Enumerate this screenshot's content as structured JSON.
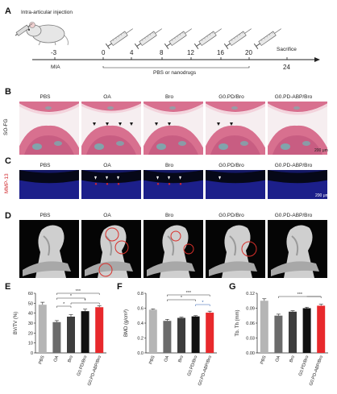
{
  "panels": {
    "A": "A",
    "B": "B",
    "C": "C",
    "D": "D",
    "E": "E",
    "F": "F",
    "G": "G"
  },
  "timeline": {
    "injection_label": "Intra-articular injection",
    "mia_day": "-3",
    "mia_label": "MIA",
    "days": [
      "0",
      "4",
      "8",
      "12",
      "16",
      "20"
    ],
    "sacrifice_day": "24",
    "sacrifice_label": "Sacrifice",
    "treatment_label": "PBS or nanodrugs"
  },
  "groups": [
    "PBS",
    "OA",
    "Bro",
    "G0.PD/Bro",
    "G0.PD-ABP/Bro"
  ],
  "row_labels": {
    "sofg": "SO-FG",
    "mmp": "MMP-13"
  },
  "scale_bars": {
    "sofg": "200 μm",
    "mmp": "200 μm"
  },
  "colors": {
    "sofg_pink": "#d8708f",
    "sofg_teal": "#6fb7b6",
    "dapi_blue": "#1c1f8a",
    "mmp_red": "#e0262a",
    "ct_gray": "#cfcfcf",
    "bar_pbs": "#b5b5b5",
    "bar_oa": "#6b6b6b",
    "bar_bro": "#3d3d3d",
    "bar_g0": "#111111",
    "bar_g0abp": "#e8292c",
    "sig_gray": "#333333",
    "sig_blue": "#2d5fae"
  },
  "chart_data": [
    {
      "type": "bar",
      "panel": "E",
      "categories": [
        "PBS",
        "OA",
        "Bro",
        "G0.PD/Bro",
        "G0.PD-ABP/Bro"
      ],
      "values": [
        48.5,
        31,
        36.5,
        42,
        46
      ],
      "errors": [
        2.5,
        1.5,
        2,
        2,
        1.5
      ],
      "ylabel": "BV/TV (%)",
      "ylim": [
        0,
        60
      ],
      "yticks": [
        "0",
        "10",
        "20",
        "30",
        "40",
        "50",
        "60"
      ],
      "significance": [
        "***",
        "*",
        "*",
        "*"
      ]
    },
    {
      "type": "bar",
      "panel": "F",
      "categories": [
        "PBS",
        "OA",
        "Bro",
        "G0.PD/Bro",
        "G0.PD-ABP/Bro"
      ],
      "values": [
        0.58,
        0.43,
        0.47,
        0.49,
        0.54
      ],
      "errors": [
        0.01,
        0.02,
        0.01,
        0.01,
        0.02
      ],
      "ylabel": "BMD (g/cm³)",
      "ylim": [
        0.0,
        0.8
      ],
      "yticks": [
        "0.0",
        "0.2",
        "0.4",
        "0.6",
        "0.8"
      ],
      "significance": [
        "***",
        "*",
        "*"
      ]
    },
    {
      "type": "bar",
      "panel": "G",
      "categories": [
        "PBS",
        "OA",
        "Bro",
        "G0.PD/Bro",
        "G0.PD-ABP/Bro"
      ],
      "values": [
        0.105,
        0.075,
        0.083,
        0.09,
        0.095
      ],
      "errors": [
        0.004,
        0.003,
        0.002,
        0.002,
        0.003
      ],
      "ylabel": "Tb. Th (mm)",
      "ylim": [
        0.0,
        0.12
      ],
      "yticks": [
        "0.00",
        "0.03",
        "0.06",
        "0.09",
        "0.12"
      ],
      "significance": [
        "***"
      ]
    }
  ]
}
